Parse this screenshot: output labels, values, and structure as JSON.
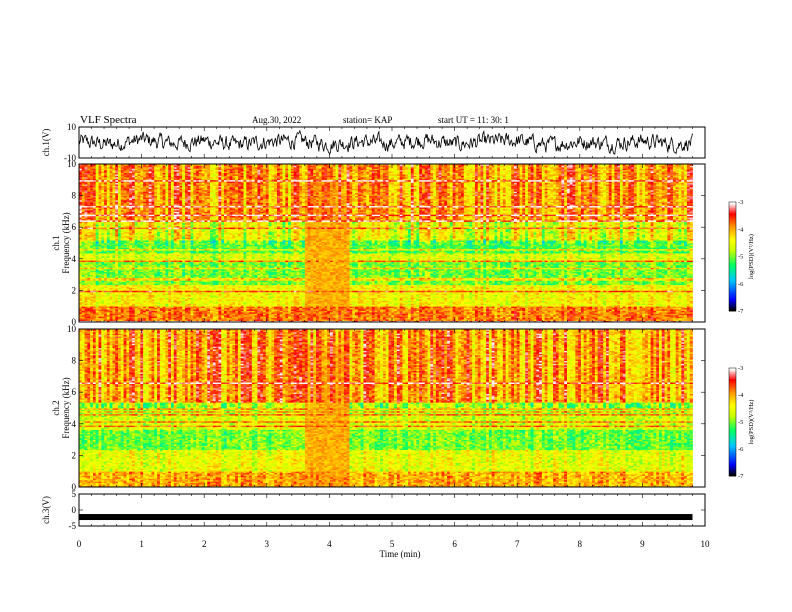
{
  "header": {
    "title": "VLF Spectra",
    "date": "Aug.30, 2022",
    "station": "station= KAP",
    "start": "start  UT  =   11: 30: 1"
  },
  "chart_data": [
    {
      "type": "line",
      "panel": "ch1-waveform",
      "ylabel": "ch.1(V)",
      "ylim": [
        -10,
        10
      ],
      "ytick_labels": [
        "10",
        "-10"
      ],
      "xlim": [
        0,
        10
      ],
      "x_extent_min": [
        0,
        9.8
      ],
      "note_values": "dense noisy waveform oscillating roughly between -6 and +6 V",
      "series": [
        {
          "x": [
            0,
            0.5,
            1,
            1.5,
            2,
            2.5,
            3,
            3.5,
            4,
            4.5,
            5,
            5.5,
            6,
            6.5,
            7,
            7.5,
            8,
            8.5,
            9,
            9.5,
            9.8
          ],
          "values": [
            1,
            -2,
            3,
            -1,
            2,
            -3,
            1,
            2,
            -2,
            1,
            -1,
            3,
            -2,
            1,
            2,
            -3,
            1,
            -1,
            2,
            -2,
            0
          ]
        }
      ]
    },
    {
      "type": "heatmap",
      "panel": "ch1-spectrogram",
      "ylabel": "ch.1\nFrequency  (kHz)",
      "ylim": [
        0,
        10
      ],
      "ytick_labels": [
        "0",
        "2",
        "4",
        "6",
        "8",
        "10"
      ],
      "xlim": [
        0,
        10
      ],
      "x_extent_min": [
        0,
        9.8
      ],
      "colorbar": {
        "label": "log(PSD)(V²/Hz)",
        "range": [
          -7,
          -3
        ],
        "tick_labels": [
          "-3",
          "-4",
          "-5",
          "-6",
          "-7"
        ],
        "colors": [
          "#000000",
          "#0000ff",
          "#00c8ff",
          "#00ff64",
          "#c8ff00",
          "#ffff00",
          "#ff9600",
          "#ff0000",
          "#ffffff"
        ]
      },
      "bands_khz": [
        {
          "from": 0,
          "to": 1,
          "level": -3.8
        },
        {
          "from": 1,
          "to": 2.4,
          "level": -4.4
        },
        {
          "from": 2.4,
          "to": 3.8,
          "level": -5.0
        },
        {
          "from": 3.8,
          "to": 4.4,
          "level": -4.6
        },
        {
          "from": 4.4,
          "to": 5.2,
          "level": -5.1
        },
        {
          "from": 5.2,
          "to": 6.4,
          "level": -4.5
        },
        {
          "from": 6.4,
          "to": 10,
          "level": -3.9
        }
      ],
      "burst_min": [
        3.6,
        4.3
      ]
    },
    {
      "type": "heatmap",
      "panel": "ch2-spectrogram",
      "ylabel": "ch.2\nFrequency  (kHz)",
      "ylim": [
        0,
        10
      ],
      "ytick_labels": [
        "0",
        "2",
        "4",
        "6",
        "8",
        "10"
      ],
      "xlim": [
        0,
        10
      ],
      "x_extent_min": [
        0,
        9.8
      ],
      "colorbar": {
        "label": "log(PSD)(V²/Hz)",
        "range": [
          -7,
          -3
        ],
        "tick_labels": [
          "-3",
          "-4",
          "-5",
          "-6",
          "-7"
        ],
        "colors": [
          "#000000",
          "#0000ff",
          "#00c8ff",
          "#00ff64",
          "#c8ff00",
          "#ffff00",
          "#ff9600",
          "#ff0000",
          "#ffffff"
        ]
      },
      "bands_khz": [
        {
          "from": 0,
          "to": 1,
          "level": -4.0
        },
        {
          "from": 1,
          "to": 2.4,
          "level": -4.5
        },
        {
          "from": 2.4,
          "to": 3.6,
          "level": -5.0
        },
        {
          "from": 3.6,
          "to": 4.6,
          "level": -4.6
        },
        {
          "from": 4.6,
          "to": 5.4,
          "level": -4.8
        },
        {
          "from": 5.4,
          "to": 10,
          "level": -3.9
        }
      ],
      "burst_min": [
        3.6,
        4.3
      ]
    },
    {
      "type": "line",
      "panel": "ch3-waveform",
      "ylabel": "ch.3(V)",
      "ylim": [
        -5,
        5
      ],
      "ytick_labels": [
        "5",
        "0",
        "-5"
      ],
      "xlim": [
        0,
        10
      ],
      "x_extent_min": [
        0,
        9.8
      ],
      "series": [
        {
          "x": [
            0,
            9.8
          ],
          "values": [
            -2.2,
            -2.2
          ]
        }
      ]
    }
  ],
  "xaxis": {
    "label": "Time  (min)",
    "tick_labels": [
      "0",
      "1",
      "2",
      "3",
      "4",
      "5",
      "6",
      "7",
      "8",
      "9",
      "10"
    ]
  }
}
